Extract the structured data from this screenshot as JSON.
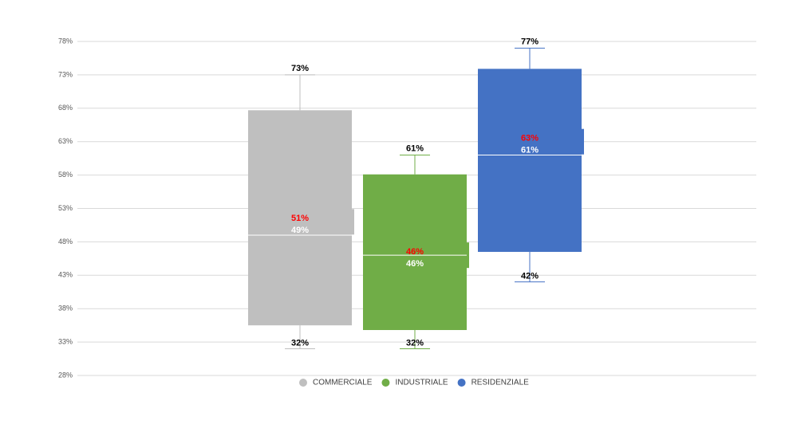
{
  "chart_data": {
    "type": "box",
    "ylim": [
      28,
      78
    ],
    "yticks": [
      {
        "value": 28,
        "label": "28%"
      },
      {
        "value": 33,
        "label": "33%"
      },
      {
        "value": 38,
        "label": "38%"
      },
      {
        "value": 43,
        "label": "43%"
      },
      {
        "value": 48,
        "label": "48%"
      },
      {
        "value": 53,
        "label": "53%"
      },
      {
        "value": 58,
        "label": "58%"
      },
      {
        "value": 63,
        "label": "63%"
      },
      {
        "value": 68,
        "label": "68%"
      },
      {
        "value": 73,
        "label": "73%"
      },
      {
        "value": 78,
        "label": "78%"
      }
    ],
    "grid": true,
    "legend": "bottom",
    "series": [
      {
        "name": "COMMERCIALE",
        "color": "#bfbfbf",
        "min": 32,
        "q1": 35.5,
        "median": 49,
        "q3": 67.7,
        "max": 73,
        "mean": 51,
        "value_labels": {
          "min": "32%",
          "median": "49%",
          "mean": "51%",
          "max": "73%"
        }
      },
      {
        "name": "INDUSTRIALE",
        "color": "#70ad47",
        "min": 32,
        "q1": 34.8,
        "median": 46,
        "q3": 58.1,
        "max": 61,
        "mean": 46,
        "value_labels": {
          "min": "32%",
          "median": "46%",
          "mean": "46%",
          "max": "61%"
        }
      },
      {
        "name": "RESIDENZIALE",
        "color": "#4472c4",
        "min": 42,
        "q1": 46.5,
        "median": 61,
        "q3": 73.9,
        "max": 77,
        "mean": 63,
        "value_labels": {
          "min": "42%",
          "median": "61%",
          "mean": "63%",
          "max": "77%"
        }
      }
    ]
  }
}
